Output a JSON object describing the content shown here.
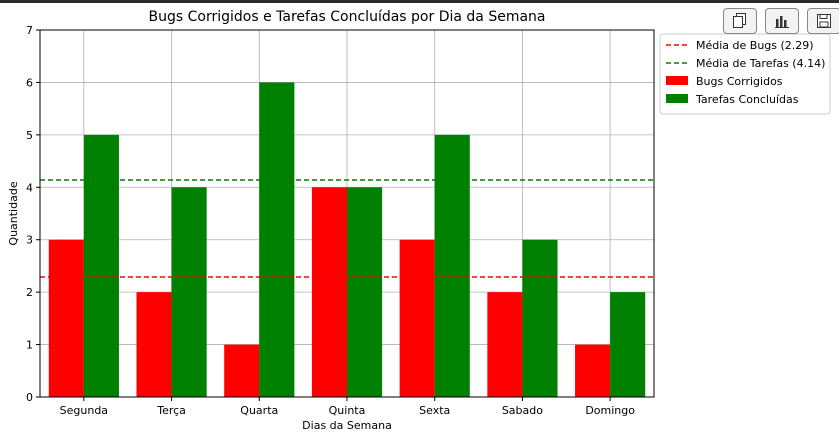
{
  "chart_data": {
    "type": "bar",
    "title": "Bugs Corrigidos e Tarefas Concluídas por Dia da Semana",
    "xlabel": "Dias da Semana",
    "ylabel": "Quantidade",
    "categories": [
      "Segunda",
      "Terça",
      "Quarta",
      "Quinta",
      "Sexta",
      "Sabado",
      "Domingo"
    ],
    "series": [
      {
        "name": "Bugs Corrigidos",
        "values": [
          3,
          2,
          1,
          4,
          3,
          2,
          1
        ],
        "color": "#ff0000"
      },
      {
        "name": "Tarefas Concluídas",
        "values": [
          5,
          4,
          6,
          4,
          5,
          3,
          2
        ],
        "color": "#008000"
      }
    ],
    "reference_lines": [
      {
        "name": "Média de Bugs (2.29)",
        "value": 2.29,
        "color": "#ff0000",
        "style": "dashed"
      },
      {
        "name": "Média de Tarefas (4.14)",
        "value": 4.14,
        "color": "#008000",
        "style": "dashed"
      }
    ],
    "ylim": [
      0,
      7
    ],
    "yticks": [
      0,
      1,
      2,
      3,
      4,
      5,
      6,
      7
    ],
    "grid": true,
    "legend_position": "outside-top-right"
  },
  "toolbar": {
    "buttons": [
      {
        "name": "copy-button",
        "icon": "copy-icon"
      },
      {
        "name": "chart-button",
        "icon": "bar-chart-icon"
      },
      {
        "name": "save-button",
        "icon": "save-icon"
      }
    ]
  }
}
